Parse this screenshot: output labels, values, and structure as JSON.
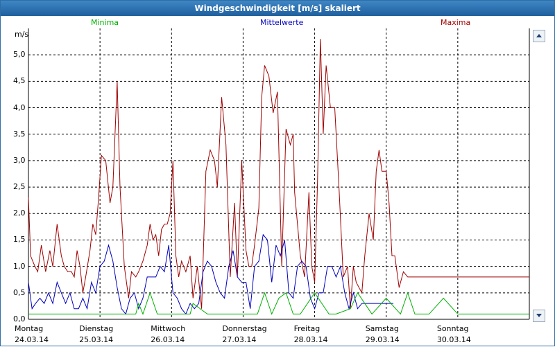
{
  "window": {
    "title": "Windgeschwindigkeit [m/s] skaliert"
  },
  "legend": {
    "minima": "Minima",
    "mittelwerte": "Mittelwerte",
    "maxima": "Maxima",
    "colors": {
      "minima": "#00b000",
      "mittelwerte": "#0000c0",
      "maxima": "#a00000"
    }
  },
  "chart_data": {
    "type": "line",
    "title": "Windgeschwindigkeit [m/s] skaliert",
    "ylabel": "m/s",
    "xlabel": "",
    "ylim": [
      0,
      5.5
    ],
    "xlim": [
      0,
      7
    ],
    "yticks": [
      "0,0",
      "0,5",
      "1,0",
      "1,5",
      "2,0",
      "2,5",
      "3,0",
      "3,5",
      "4,0",
      "4,5",
      "5,0"
    ],
    "ytick_values": [
      0,
      0.5,
      1,
      1.5,
      2,
      2.5,
      3,
      3.5,
      4,
      4.5,
      5
    ],
    "days": [
      {
        "name": "Montag",
        "date": "24.03.14"
      },
      {
        "name": "Dienstag",
        "date": "25.03.14"
      },
      {
        "name": "Mittwoch",
        "date": "26.03.14"
      },
      {
        "name": "Donnerstag",
        "date": "27.03.14"
      },
      {
        "name": "Freitag",
        "date": "28.03.14"
      },
      {
        "name": "Samstag",
        "date": "29.03.14"
      },
      {
        "name": "Sonntag",
        "date": "30.03.14"
      }
    ],
    "grid": true,
    "series": [
      {
        "name": "Maxima",
        "color": "#a00000",
        "x": [
          0,
          0.03,
          0.09,
          0.13,
          0.18,
          0.24,
          0.3,
          0.34,
          0.4,
          0.46,
          0.5,
          0.55,
          0.6,
          0.64,
          0.68,
          0.72,
          0.76,
          0.8,
          0.86,
          0.9,
          0.94,
          0.98,
          1.02,
          1.08,
          1.14,
          1.18,
          1.24,
          1.28,
          1.34,
          1.4,
          1.44,
          1.5,
          1.54,
          1.6,
          1.66,
          1.7,
          1.74,
          1.78,
          1.82,
          1.86,
          1.9,
          1.94,
          1.98,
          2.02,
          2.06,
          2.1,
          2.14,
          2.2,
          2.26,
          2.3,
          2.36,
          2.42,
          2.48,
          2.54,
          2.6,
          2.64,
          2.7,
          2.76,
          2.82,
          2.88,
          2.92,
          2.98,
          3.04,
          3.08,
          3.12,
          3.16,
          3.22,
          3.26,
          3.3,
          3.36,
          3.42,
          3.48,
          3.54,
          3.6,
          3.66,
          3.7,
          3.72,
          3.8,
          3.86,
          3.92,
          3.96,
          4,
          4.04,
          4.08,
          4.12,
          4.16,
          4.22,
          4.28,
          4.34,
          4.4,
          4.46,
          4.5,
          4.54,
          4.58,
          4.62,
          4.66,
          4.7,
          4.76,
          4.82,
          4.86,
          4.9,
          4.94,
          5,
          5.04,
          5.08,
          5.12,
          5.18,
          5.24,
          5.3,
          5.34,
          5.4,
          5.44,
          5.48,
          5.52,
          5.56,
          5.6,
          5.64,
          5.68,
          5.72,
          5.78,
          5.84,
          5.9,
          5.96,
          6.02,
          6.06,
          6.1,
          6.16,
          6.22,
          6.28,
          6.32,
          6.36,
          6.4,
          6.44,
          6.48,
          6.52,
          6.56,
          6.62,
          6.66,
          6.7,
          6.76,
          6.82,
          6.88,
          6.94,
          7
        ],
        "y": [
          2.3,
          1.2,
          1.0,
          0.9,
          1.4,
          0.9,
          1.3,
          1.0,
          1.8,
          1.2,
          1.0,
          0.9,
          0.9,
          0.8,
          1.3,
          1.0,
          0.5,
          0.8,
          1.3,
          1.8,
          1.6,
          2.3,
          3.1,
          3.0,
          2.2,
          2.5,
          4.5,
          2.5,
          1.0,
          0.4,
          0.9,
          0.8,
          0.9,
          1.1,
          1.4,
          1.8,
          1.5,
          1.6,
          1.2,
          1.7,
          1.8,
          1.8,
          2.0,
          3.0,
          1.2,
          0.8,
          1.1,
          0.9,
          1.2,
          0.4,
          1.0,
          0.2,
          2.8,
          3.2,
          3.0,
          2.5,
          4.2,
          3.3,
          0.8,
          2.2,
          0.8,
          3.0,
          1.3,
          1.0,
          1.0,
          1.4,
          2.1,
          4.2,
          4.8,
          4.6,
          3.9,
          4.3,
          1.0,
          3.6,
          3.3,
          3.5,
          2.4,
          1.2,
          0.8,
          2.4,
          1.0,
          0.7,
          2.6,
          5.3,
          3.5,
          4.8,
          4.0,
          4.0,
          2.5,
          0.8,
          1.0,
          0.2,
          1.0,
          0.7,
          0.6,
          0.5,
          1.2,
          2.0,
          1.5,
          2.8,
          3.2,
          2.8,
          2.8,
          2.2,
          1.2,
          1.2,
          0.6,
          0.9,
          0.8,
          0.8,
          0.8,
          0.8,
          0.8,
          0.8,
          0.8,
          0.8,
          0.8,
          0.8,
          0.8,
          0.8,
          0.8,
          0.8,
          0.8,
          0.8,
          0.8,
          0.8,
          0.8,
          0.8,
          0.8,
          0.8,
          0.8,
          0.8,
          0.8,
          0.8,
          0.8,
          0.8,
          0.8,
          0.8,
          0.8,
          0.8,
          0.8,
          0.8,
          0.8,
          0.8
        ]
      },
      {
        "name": "Mittelwerte",
        "color": "#0000c0",
        "x": [
          0,
          0.05,
          0.1,
          0.16,
          0.22,
          0.28,
          0.34,
          0.4,
          0.46,
          0.52,
          0.58,
          0.64,
          0.7,
          0.76,
          0.82,
          0.88,
          0.94,
          1,
          1.06,
          1.12,
          1.18,
          1.24,
          1.3,
          1.36,
          1.42,
          1.48,
          1.54,
          1.6,
          1.66,
          1.72,
          1.78,
          1.84,
          1.9,
          1.96,
          2.02,
          2.08,
          2.14,
          2.2,
          2.26,
          2.32,
          2.38,
          2.44,
          2.5,
          2.56,
          2.62,
          2.68,
          2.74,
          2.8,
          2.86,
          2.92,
          2.98,
          3.04,
          3.1,
          3.16,
          3.22,
          3.28,
          3.34,
          3.4,
          3.46,
          3.52,
          3.58,
          3.64,
          3.7,
          3.76,
          3.82,
          3.88,
          3.94,
          4,
          4.06,
          4.12,
          4.18,
          4.24,
          4.3,
          4.36,
          4.42,
          4.48,
          4.54,
          4.6,
          4.66,
          4.72,
          4.78,
          4.84,
          4.9,
          4.96,
          5.02,
          5.1
        ],
        "y": [
          0.7,
          0.2,
          0.3,
          0.4,
          0.3,
          0.5,
          0.3,
          0.7,
          0.5,
          0.3,
          0.5,
          0.2,
          0.2,
          0.4,
          0.2,
          0.7,
          0.5,
          1.0,
          1.1,
          1.4,
          1.1,
          0.6,
          0.2,
          0.1,
          0.4,
          0.5,
          0.2,
          0.4,
          0.8,
          0.8,
          0.8,
          1.0,
          0.9,
          1.4,
          0.5,
          0.4,
          0.2,
          0.1,
          0.3,
          0.2,
          0.3,
          0.9,
          1.1,
          1.0,
          0.7,
          0.5,
          0.4,
          1.0,
          1.3,
          0.8,
          0.7,
          0.7,
          0.2,
          1.0,
          1.1,
          1.6,
          1.5,
          0.7,
          1.4,
          1.2,
          1.5,
          0.5,
          0.4,
          1.0,
          1.1,
          1.0,
          0.4,
          0.2,
          0.5,
          0.5,
          1.0,
          1.0,
          0.8,
          1.0,
          0.5,
          0.2,
          0.5,
          0.2,
          0.3,
          0.3,
          0.3,
          0.3,
          0.3,
          0.3,
          0.3,
          0.3
        ]
      },
      {
        "name": "Minima",
        "color": "#00b000",
        "x": [
          0,
          0.6,
          1,
          1.4,
          1.5,
          1.54,
          1.6,
          1.7,
          1.8,
          2,
          2.26,
          2.3,
          2.5,
          2.7,
          2.9,
          3,
          3.2,
          3.3,
          3.4,
          3.5,
          3.6,
          3.7,
          3.8,
          4.0,
          4.1,
          4.2,
          4.3,
          4.5,
          4.6,
          4.8,
          5.0,
          5.2,
          5.3,
          5.4,
          5.6,
          5.8,
          6.0,
          6.2,
          6.4,
          6.6,
          6.8,
          7
        ],
        "y": [
          0.1,
          0.1,
          0.1,
          0.1,
          0.1,
          0.3,
          0.1,
          0.5,
          0.1,
          0.1,
          0.1,
          0.3,
          0.1,
          0.1,
          0.1,
          0.1,
          0.1,
          0.5,
          0.1,
          0.4,
          0.5,
          0.1,
          0.1,
          0.5,
          0.3,
          0.1,
          0.1,
          0.2,
          0.5,
          0.1,
          0.4,
          0.1,
          0.5,
          0.1,
          0.1,
          0.4,
          0.1,
          0.1,
          0.1,
          0.1,
          0.1,
          0.1
        ]
      }
    ]
  }
}
